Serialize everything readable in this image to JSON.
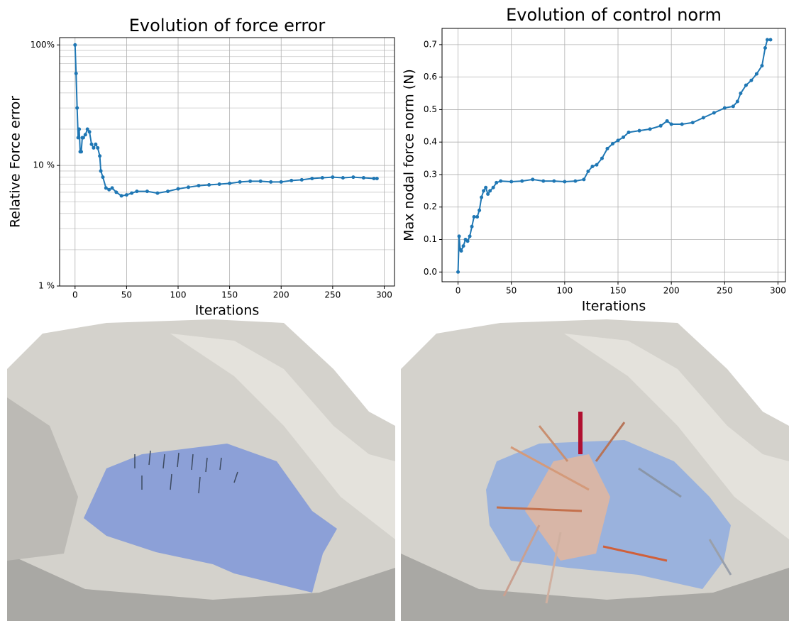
{
  "chart_data": [
    {
      "type": "line",
      "title": "Evolution of force error",
      "xlabel": "Iterations",
      "ylabel": "Relative Force error",
      "yscale": "log",
      "grid": true,
      "color": "#1f77b4",
      "xlim": [
        -15,
        310
      ],
      "ylim": [
        1,
        115
      ],
      "xticks": [
        0,
        50,
        100,
        150,
        200,
        250,
        300
      ],
      "yticks": [
        {
          "value": 1,
          "label": "1 %"
        },
        {
          "value": 10,
          "label": "10 %"
        },
        {
          "value": 100,
          "label": "100%"
        }
      ],
      "yticks_minor": [
        2,
        3,
        4,
        5,
        6,
        7,
        8,
        9,
        20,
        30,
        40,
        50,
        60,
        70,
        80,
        90
      ],
      "x": [
        0,
        1,
        2,
        3,
        4,
        5,
        6,
        7,
        8,
        10,
        12,
        14,
        16,
        18,
        20,
        22,
        24,
        25,
        27,
        30,
        33,
        36,
        40,
        45,
        50,
        55,
        60,
        70,
        80,
        90,
        100,
        110,
        120,
        130,
        140,
        150,
        160,
        170,
        180,
        190,
        200,
        210,
        220,
        230,
        240,
        250,
        260,
        270,
        280,
        290,
        293
      ],
      "values": [
        100,
        58,
        30,
        17,
        20,
        13,
        13,
        17,
        17,
        18,
        20,
        19,
        15,
        14,
        15,
        14,
        12,
        9,
        8,
        6.5,
        6.3,
        6.5,
        6,
        5.6,
        5.7,
        5.9,
        6.1,
        6.1,
        5.9,
        6.1,
        6.4,
        6.6,
        6.8,
        6.9,
        7.0,
        7.1,
        7.3,
        7.4,
        7.4,
        7.3,
        7.3,
        7.5,
        7.6,
        7.8,
        7.9,
        8.0,
        7.9,
        8.0,
        7.9,
        7.8,
        7.8
      ]
    },
    {
      "type": "line",
      "title": "Evolution of control norm",
      "xlabel": "Iterations",
      "ylabel": "Max nodal force norm (N)",
      "yscale": "linear",
      "grid": true,
      "color": "#1f77b4",
      "xlim": [
        -15,
        307
      ],
      "ylim": [
        -0.03,
        0.75
      ],
      "xticks": [
        0,
        50,
        100,
        150,
        200,
        250,
        300
      ],
      "yticks": [
        {
          "value": 0,
          "label": "0.0"
        },
        0.1,
        0.2,
        0.3,
        0.4,
        0.5,
        0.6,
        0.7
      ],
      "x": [
        0,
        1,
        2,
        3,
        5,
        7,
        9,
        11,
        13,
        15,
        18,
        20,
        22,
        24,
        26,
        28,
        30,
        33,
        36,
        40,
        50,
        60,
        70,
        80,
        90,
        100,
        110,
        118,
        122,
        126,
        130,
        135,
        140,
        145,
        150,
        155,
        160,
        170,
        180,
        190,
        196,
        200,
        210,
        220,
        230,
        240,
        250,
        258,
        262,
        265,
        270,
        275,
        280,
        285,
        288,
        290,
        293
      ],
      "values": [
        0,
        0.11,
        0.07,
        0.065,
        0.08,
        0.1,
        0.095,
        0.11,
        0.14,
        0.17,
        0.17,
        0.19,
        0.23,
        0.25,
        0.26,
        0.24,
        0.25,
        0.26,
        0.275,
        0.28,
        0.278,
        0.28,
        0.285,
        0.28,
        0.28,
        0.278,
        0.28,
        0.285,
        0.31,
        0.325,
        0.33,
        0.35,
        0.38,
        0.395,
        0.405,
        0.415,
        0.43,
        0.435,
        0.44,
        0.45,
        0.465,
        0.455,
        0.455,
        0.46,
        0.475,
        0.49,
        0.505,
        0.51,
        0.525,
        0.55,
        0.575,
        0.59,
        0.61,
        0.635,
        0.69,
        0.715,
        0.715
      ]
    }
  ]
}
